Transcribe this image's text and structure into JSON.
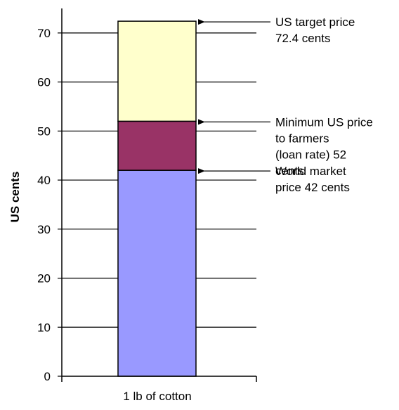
{
  "chart_data": {
    "type": "bar",
    "stacked": true,
    "categories": [
      "1 lb of cotton"
    ],
    "ylabel": "US cents",
    "xlabel": "",
    "ylim": [
      0,
      75
    ],
    "yticks": [
      0,
      10,
      20,
      30,
      40,
      50,
      60,
      70
    ],
    "grid": true,
    "legend": "none",
    "series": [
      {
        "values": [
          42
        ],
        "color": "#9999ff"
      },
      {
        "values": [
          10
        ],
        "color": "#993366"
      },
      {
        "values": [
          20.4
        ],
        "color": "#ffffcc"
      }
    ],
    "annotations": [
      {
        "value": 72.4,
        "lines": [
          "US target price",
          "72.4 cents"
        ]
      },
      {
        "value": 52,
        "lines": [
          "Minimum US price",
          "to farmers",
          "(loan rate) 52",
          "cents"
        ]
      },
      {
        "value": 42,
        "lines": [
          "World market",
          "price 42 cents"
        ]
      }
    ]
  }
}
